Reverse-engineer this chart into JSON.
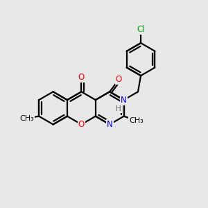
{
  "bg_color": "#e8e8e8",
  "bond_color": "#000000",
  "atom_colors": {
    "O": "#ff0000",
    "N": "#0000ff",
    "Cl": "#00aa00",
    "C": "#000000",
    "H": "#808080"
  },
  "bond_width": 1.6,
  "font_size_atom": 8.5,
  "font_size_small": 7.5
}
